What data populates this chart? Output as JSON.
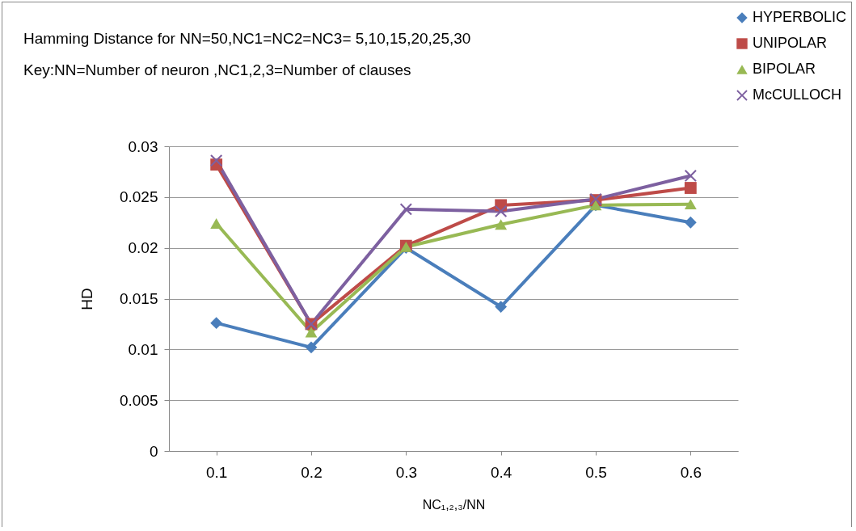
{
  "chart_data": {
    "type": "line",
    "title": "Hamming Distance for NN=50,NC1=NC2=NC3= 5,10,15,20,25,30",
    "subtitle": "Key:NN=Number of neuron  ,NC1,2,3=Number of clauses",
    "xlabel": "NC₁,₂,₃/NN",
    "ylabel": "HD",
    "categories": [
      "0.1",
      "0.2",
      "0.3",
      "0.4",
      "0.5",
      "0.6"
    ],
    "series": [
      {
        "name": "HYPERBOLIC",
        "color": "#4a7ebb",
        "marker": "diamond",
        "values": [
          0.0126,
          0.0102,
          0.02,
          0.0142,
          0.0242,
          0.0225
        ]
      },
      {
        "name": "UNIPOLAR",
        "color": "#be4b48",
        "marker": "square",
        "values": [
          0.0282,
          0.0125,
          0.0202,
          0.0242,
          0.0247,
          0.0259
        ]
      },
      {
        "name": "BIPOLAR",
        "color": "#98b954",
        "marker": "triangle",
        "values": [
          0.0224,
          0.0117,
          0.0201,
          0.0223,
          0.0242,
          0.0243
        ]
      },
      {
        "name": "McCULLOCH",
        "color": "#7d60a0",
        "marker": "cross",
        "values": [
          0.0286,
          0.0125,
          0.0238,
          0.0236,
          0.0248,
          0.0271
        ]
      }
    ],
    "ylim": [
      0,
      0.03
    ],
    "yticks": [
      0,
      0.005,
      0.01,
      0.015,
      0.02,
      0.025,
      0.03
    ],
    "grid": "y",
    "legend": "top right"
  }
}
